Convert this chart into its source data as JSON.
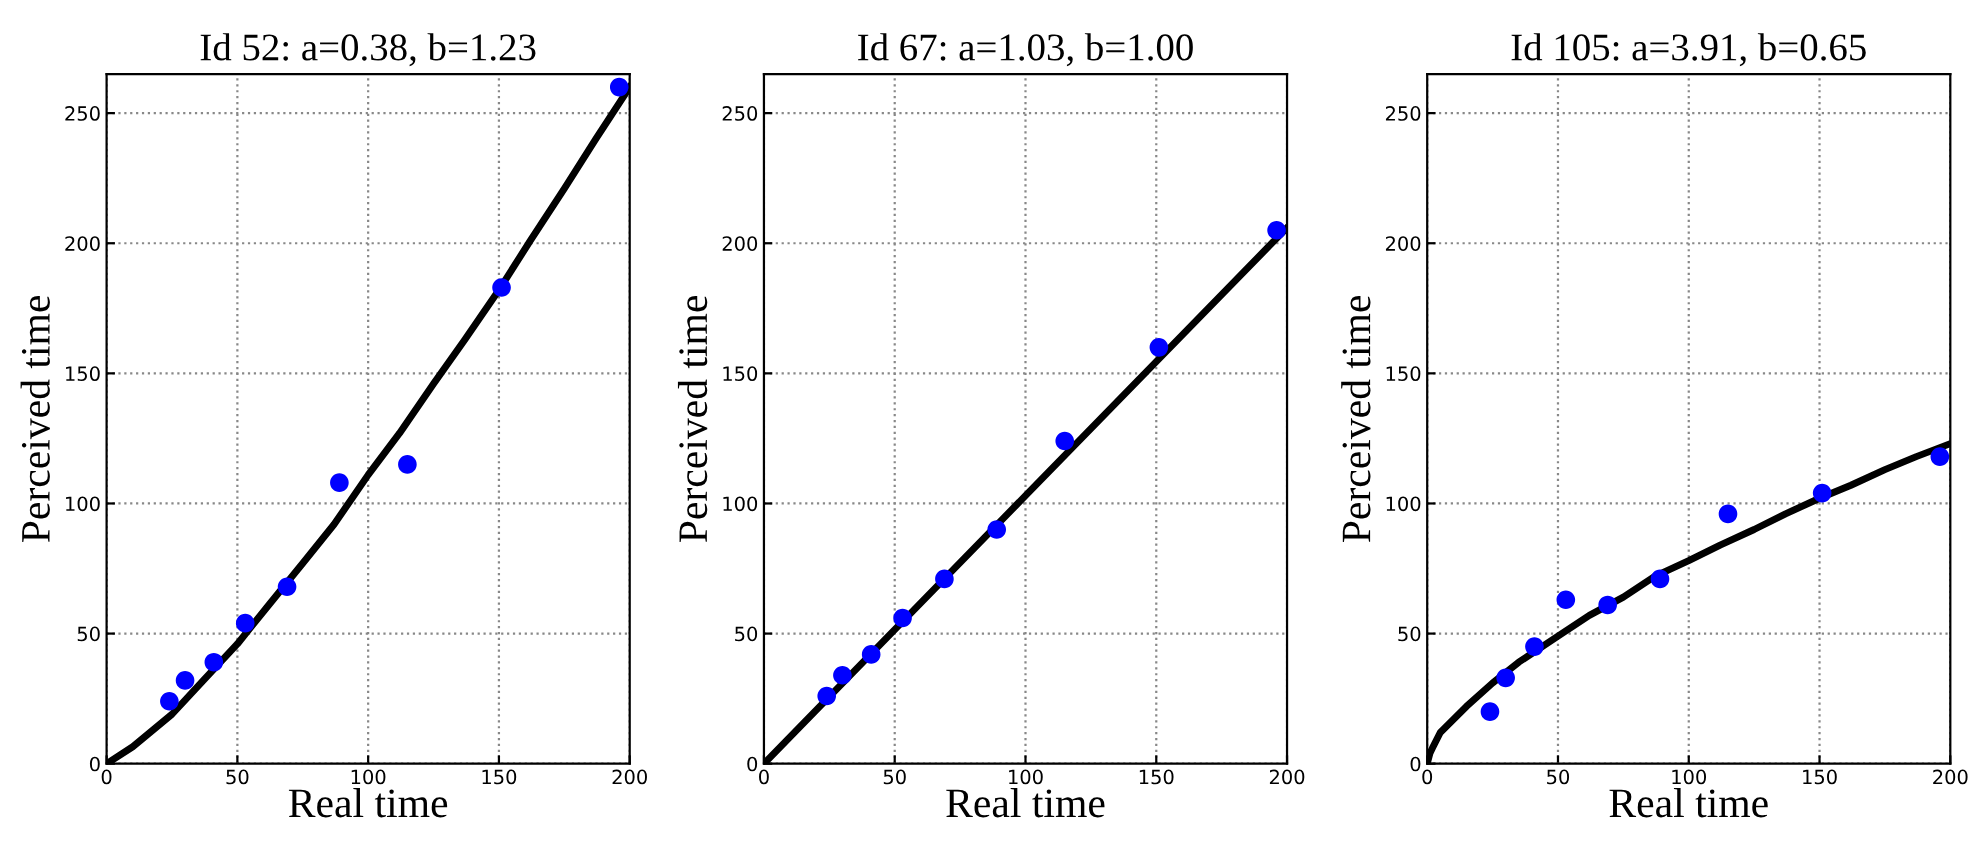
{
  "chart_data": [
    {
      "type": "scatter",
      "title": "Id 52: a=0.38, b=1.23",
      "xlabel": "Real time",
      "ylabel": "Perceived time",
      "xlim": [
        0,
        200
      ],
      "ylim": [
        0,
        265
      ],
      "xticks": [
        0,
        50,
        100,
        150,
        200
      ],
      "yticks": [
        0,
        50,
        100,
        150,
        200,
        250
      ],
      "grid": true,
      "series": [
        {
          "color": "#0000ff",
          "marker": "circle",
          "x": [
            24,
            30,
            41,
            53,
            69,
            89,
            115,
            151,
            196
          ],
          "values": [
            24,
            32,
            39,
            54,
            68,
            108,
            115,
            183,
            260
          ]
        },
        {
          "type": "line",
          "color": "#000000",
          "marker": "none",
          "x": [
            0,
            10,
            25,
            37,
            50,
            62,
            75,
            87,
            100,
            112,
            125,
            137,
            150,
            162,
            175,
            187,
            200
          ],
          "values": [
            0,
            6.5,
            19,
            32,
            46,
            61,
            77,
            92,
            111,
            127,
            146,
            163,
            182,
            201,
            221,
            240,
            260
          ]
        }
      ]
    },
    {
      "type": "scatter",
      "title": "Id 67: a=1.03, b=1.00",
      "xlabel": "Real time",
      "ylabel": "Perceived time",
      "xlim": [
        0,
        200
      ],
      "ylim": [
        0,
        265
      ],
      "xticks": [
        0,
        50,
        100,
        150,
        200
      ],
      "yticks": [
        0,
        50,
        100,
        150,
        200,
        250
      ],
      "grid": true,
      "series": [
        {
          "color": "#0000ff",
          "marker": "circle",
          "x": [
            24,
            30,
            41,
            53,
            69,
            89,
            115,
            151,
            196
          ],
          "values": [
            26,
            34,
            42,
            56,
            71,
            90,
            124,
            160,
            205
          ]
        },
        {
          "type": "line",
          "color": "#000000",
          "marker": "none",
          "x": [
            0,
            50,
            100,
            150,
            200
          ],
          "values": [
            0,
            51.5,
            103,
            154.5,
            206
          ]
        }
      ]
    },
    {
      "type": "scatter",
      "title": "Id 105: a=3.91, b=0.65",
      "xlabel": "Real time",
      "ylabel": "Perceived time",
      "xlim": [
        0,
        200
      ],
      "ylim": [
        0,
        265
      ],
      "xticks": [
        0,
        50,
        100,
        150,
        200
      ],
      "yticks": [
        0,
        50,
        100,
        150,
        200,
        250
      ],
      "grid": true,
      "series": [
        {
          "color": "#0000ff",
          "marker": "circle",
          "x": [
            24,
            30,
            41,
            53,
            69,
            89,
            115,
            151,
            196
          ],
          "values": [
            20,
            33,
            45,
            63,
            61,
            71,
            96,
            104,
            118
          ]
        },
        {
          "type": "line",
          "color": "#000000",
          "marker": "none",
          "x": [
            0,
            1,
            2,
            5,
            10,
            15,
            25,
            35,
            50,
            62,
            75,
            87,
            100,
            112,
            125,
            137,
            150,
            162,
            175,
            187,
            200
          ],
          "values": [
            0,
            3.9,
            6,
            12,
            17,
            22,
            31,
            39,
            49,
            57,
            64,
            72,
            78,
            84,
            90,
            96,
            102,
            107,
            113,
            118,
            123
          ]
        }
      ]
    }
  ]
}
